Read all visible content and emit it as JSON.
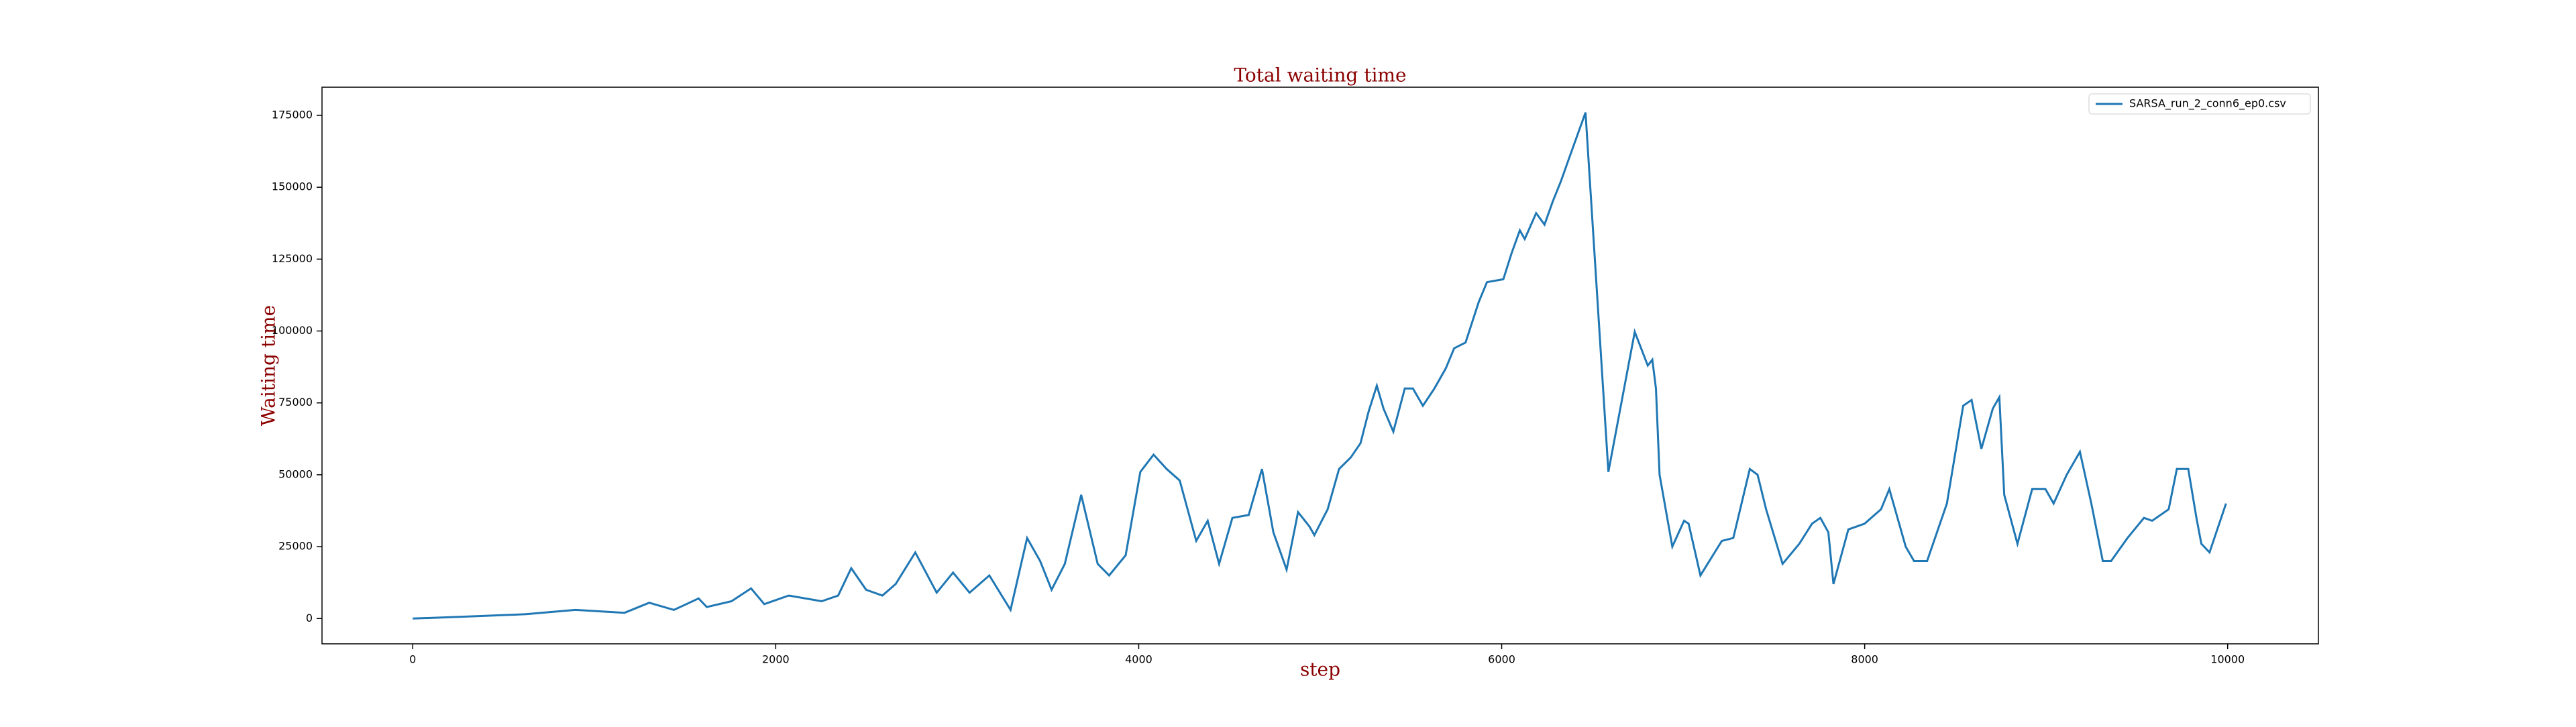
{
  "chart_data": {
    "type": "line",
    "title": "Total waiting time",
    "x_label": "step",
    "y_label": "Waiting time",
    "x": [
      0,
      353,
      624,
      896,
      1167,
      1303,
      1439,
      1575,
      1620,
      1756,
      1864,
      1937,
      2072,
      2253,
      2344,
      2416,
      2498,
      2588,
      2661,
      2769,
      2887,
      2977,
      3068,
      3177,
      3294,
      3385,
      3457,
      3520,
      3593,
      3683,
      3774,
      3837,
      3928,
      4009,
      4082,
      4154,
      4226,
      4317,
      4380,
      4443,
      4516,
      4606,
      4679,
      4742,
      4815,
      4878,
      4941,
      4968,
      5041,
      5104,
      5168,
      5222,
      5267,
      5312,
      5349,
      5403,
      5466,
      5511,
      5566,
      5629,
      5692,
      5738,
      5801,
      5873,
      5919,
      6009,
      6054,
      6100,
      6127,
      6190,
      6236,
      6281,
      6326,
      6371,
      6462,
      6588,
      6733,
      6805,
      6830,
      6850,
      6870,
      6940,
      7005,
      7030,
      7095,
      7213,
      7276,
      7367,
      7410,
      7457,
      7548,
      7640,
      7710,
      7756,
      7800,
      7828,
      7910,
      8000,
      8090,
      8136,
      8226,
      8272,
      8344,
      8453,
      8543,
      8589,
      8643,
      8706,
      8742,
      8769,
      8842,
      8923,
      8996,
      9041,
      9113,
      9186,
      9249,
      9312,
      9358,
      9448,
      9539,
      9584,
      9675,
      9720,
      9783,
      9828,
      9855,
      9900,
      9991
    ],
    "series": [
      {
        "name": "SARSA_run_2_conn6_ep0.csv",
        "color": "#1f77b4",
        "values": [
          0,
          800,
          1500,
          3000,
          2000,
          5500,
          3000,
          7000,
          4000,
          6000,
          10500,
          5000,
          8000,
          6000,
          8000,
          17500,
          10000,
          8000,
          12000,
          23000,
          9000,
          16000,
          9000,
          15000,
          3000,
          28000,
          20000,
          10000,
          19000,
          43000,
          19000,
          15000,
          22000,
          51000,
          57000,
          52000,
          48000,
          27000,
          34000,
          19000,
          35000,
          36000,
          52000,
          30000,
          17000,
          37000,
          32000,
          29000,
          38000,
          52000,
          56000,
          61000,
          72000,
          81000,
          73000,
          65000,
          80000,
          80000,
          74000,
          80000,
          87000,
          94000,
          96000,
          110000,
          117000,
          118000,
          127000,
          135000,
          132000,
          141000,
          137000,
          145000,
          152000,
          160000,
          176000,
          51000,
          99700,
          88000,
          90000,
          80000,
          50000,
          25000,
          34000,
          33000,
          15000,
          27000,
          28000,
          52000,
          50000,
          38000,
          19000,
          26000,
          33000,
          35000,
          30000,
          12000,
          31000,
          33000,
          38000,
          45000,
          25000,
          20000,
          20000,
          40000,
          74000,
          76000,
          59000,
          73000,
          77000,
          43000,
          26000,
          45000,
          45000,
          40000,
          50000,
          58000,
          40000,
          20000,
          20000,
          28000,
          35000,
          34000,
          38000,
          52000,
          52000,
          35000,
          26000,
          23000,
          40000
        ]
      }
    ],
    "xlim": [
      -500,
      10500
    ],
    "ylim": [
      -8800,
      184800
    ],
    "xticks": [
      0,
      2000,
      4000,
      6000,
      8000,
      10000
    ],
    "yticks": [
      0,
      25000,
      50000,
      75000,
      100000,
      125000,
      150000,
      175000
    ],
    "grid": false,
    "legend": "upper right"
  }
}
